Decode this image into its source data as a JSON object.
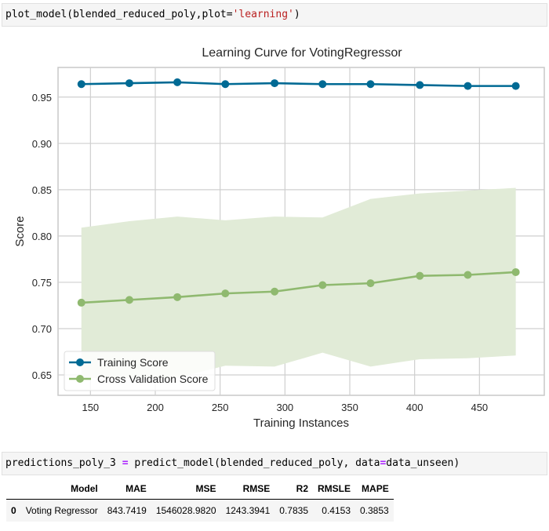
{
  "cells": {
    "cell1": {
      "fn": "plot_model(blended_reduced_poly,plot=",
      "str": "'learning'",
      "end": ")"
    },
    "cell2": {
      "a": "predictions_poly_3 ",
      "op1": "=",
      "b": " predict_model(blended_reduced_poly, data",
      "op2": "=",
      "c": "data_unseen)"
    }
  },
  "colors": {
    "training": "#006a94",
    "cv": "#8fb96f",
    "band": "#e1ebd7",
    "grid": "#cfcfcf"
  },
  "chart_data": {
    "type": "line",
    "title": "Learning Curve for VotingRegressor",
    "xlabel": "Training Instances",
    "ylabel": "Score",
    "xlim": [
      125,
      500
    ],
    "ylim": [
      0.628,
      0.982
    ],
    "xticks": [
      150,
      200,
      250,
      300,
      350,
      400,
      450
    ],
    "yticks": [
      0.65,
      0.7,
      0.75,
      0.8,
      0.85,
      0.9,
      0.95
    ],
    "ytick_labels": [
      "0.65",
      "0.70",
      "0.75",
      "0.80",
      "0.85",
      "0.90",
      "0.95"
    ],
    "x": [
      143,
      180,
      217,
      254,
      292,
      329,
      366,
      404,
      441,
      478
    ],
    "grid": true,
    "legend_position": "lower-left",
    "series": [
      {
        "name": "Training Score",
        "values": [
          0.964,
          0.965,
          0.966,
          0.964,
          0.965,
          0.964,
          0.964,
          0.963,
          0.962,
          0.962
        ]
      },
      {
        "name": "Cross Validation Score",
        "values": [
          0.728,
          0.731,
          0.734,
          0.738,
          0.74,
          0.747,
          0.749,
          0.757,
          0.758,
          0.761
        ],
        "band_upper": [
          0.809,
          0.816,
          0.821,
          0.817,
          0.821,
          0.82,
          0.84,
          0.846,
          0.849,
          0.852
        ],
        "band_lower": [
          0.647,
          0.646,
          0.647,
          0.66,
          0.659,
          0.674,
          0.659,
          0.667,
          0.668,
          0.671
        ]
      }
    ]
  },
  "results_table": {
    "headers": [
      "",
      "Model",
      "MAE",
      "MSE",
      "RMSE",
      "R2",
      "RMSLE",
      "MAPE"
    ],
    "rows": [
      [
        "0",
        "Voting Regressor",
        "843.7419",
        "1546028.9820",
        "1243.3941",
        "0.7835",
        "0.4153",
        "0.3853"
      ]
    ]
  }
}
